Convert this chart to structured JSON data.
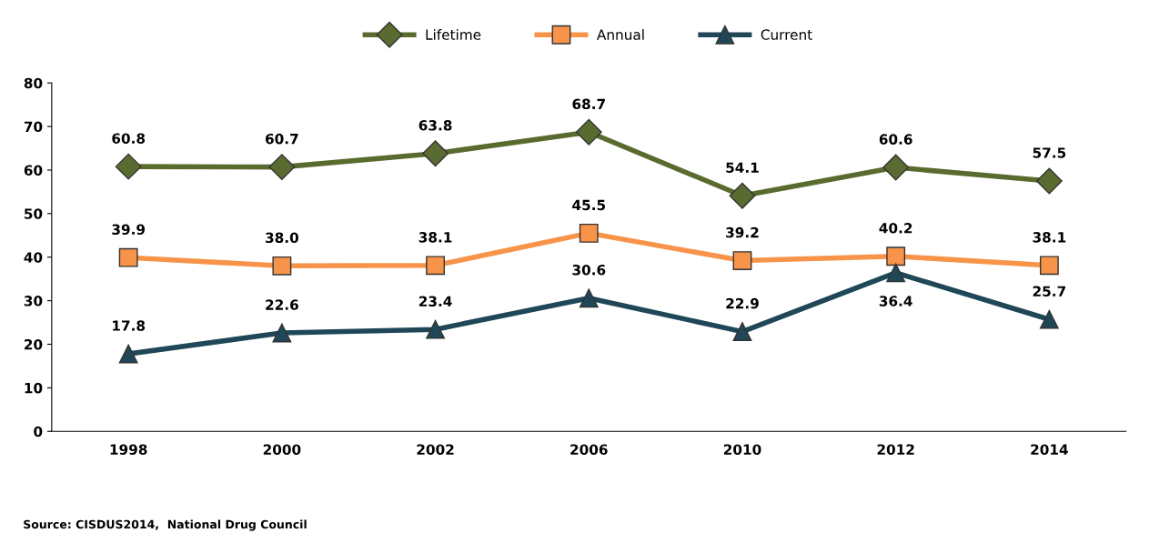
{
  "chart_data": {
    "type": "line",
    "categories": [
      "1998",
      "2000",
      "2002",
      "2006",
      "2010",
      "2012",
      "2014"
    ],
    "series": [
      {
        "name": "Lifetime",
        "color": "#5a6b2f",
        "marker": "diamond",
        "values": [
          60.8,
          60.7,
          63.8,
          68.7,
          54.1,
          60.6,
          57.5
        ],
        "value_labels": [
          "60.8",
          "60.7",
          "63.8",
          "68.7",
          "54.1",
          "60.6",
          "57.5"
        ]
      },
      {
        "name": "Annual",
        "color": "#f7944a",
        "marker": "square",
        "values": [
          39.9,
          38.0,
          38.1,
          45.5,
          39.2,
          40.2,
          38.1
        ],
        "value_labels": [
          "39.9",
          "38.0",
          "38.1",
          "45.5",
          "39.2",
          "40.2",
          "38.1"
        ]
      },
      {
        "name": "Current",
        "color": "#1f4757",
        "marker": "triangle",
        "values": [
          17.8,
          22.6,
          23.4,
          30.6,
          22.9,
          36.4,
          25.7
        ],
        "value_labels": [
          "17.8",
          "22.6",
          "23.4",
          "30.6",
          "22.9",
          "36.4",
          "25.7"
        ]
      }
    ],
    "ylim": [
      0,
      80
    ],
    "yticks": [
      0,
      10,
      20,
      30,
      40,
      50,
      60,
      70,
      80
    ],
    "grid": false,
    "legend": "top",
    "annotations": [
      "Source: CISDUS2014,  National Drug Council"
    ]
  }
}
